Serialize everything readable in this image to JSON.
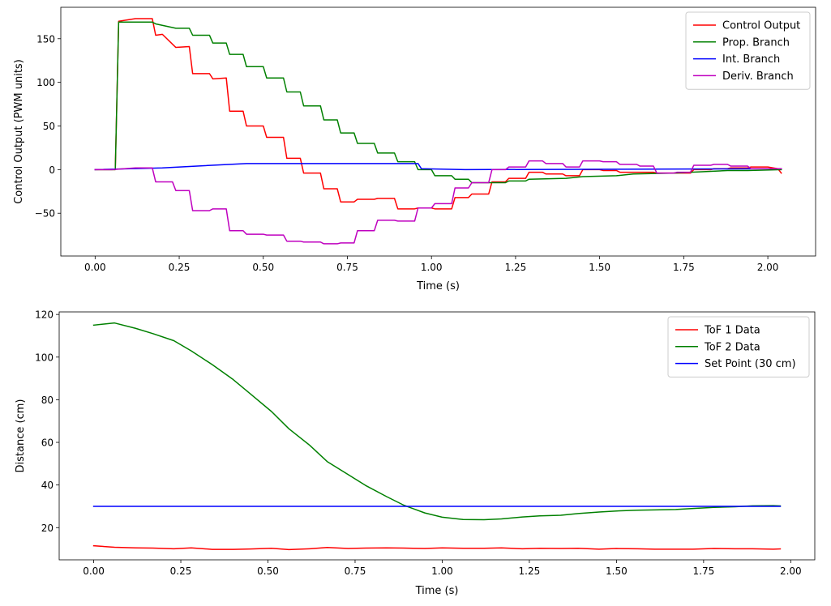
{
  "chart_data": [
    {
      "type": "line",
      "title": "",
      "xlabel": "Time (s)",
      "ylabel": "Control Output (PWM units)",
      "xlim": [
        -0.102,
        2.142
      ],
      "ylim": [
        -99,
        186
      ],
      "xticks": [
        0.0,
        0.25,
        0.5,
        0.75,
        1.0,
        1.25,
        1.5,
        1.75,
        2.0
      ],
      "xtick_labels": [
        "0.00",
        "0.25",
        "0.50",
        "0.75",
        "1.00",
        "1.25",
        "1.50",
        "1.75",
        "2.00"
      ],
      "yticks": [
        -50,
        0,
        50,
        100,
        150
      ],
      "ytick_labels": [
        "−50",
        "0",
        "50",
        "100",
        "150"
      ],
      "grid": false,
      "legend": "top-right",
      "series": [
        {
          "name": "Control Output",
          "color": "#ff0000",
          "x": [
            0.0,
            0.06,
            0.07,
            0.12,
            0.17,
            0.18,
            0.2,
            0.24,
            0.28,
            0.29,
            0.34,
            0.35,
            0.39,
            0.4,
            0.44,
            0.45,
            0.5,
            0.51,
            0.56,
            0.57,
            0.61,
            0.62,
            0.67,
            0.68,
            0.72,
            0.73,
            0.77,
            0.78,
            0.83,
            0.84,
            0.89,
            0.9,
            0.95,
            0.96,
            1.0,
            1.01,
            1.06,
            1.07,
            1.11,
            1.12,
            1.17,
            1.18,
            1.22,
            1.23,
            1.28,
            1.29,
            1.33,
            1.34,
            1.39,
            1.4,
            1.44,
            1.45,
            1.5,
            1.51,
            1.55,
            1.56,
            1.61,
            1.62,
            1.66,
            1.67,
            1.72,
            1.73,
            1.77,
            1.78,
            1.83,
            1.84,
            1.88,
            1.89,
            1.94,
            1.95,
            2.0,
            2.03,
            2.04
          ],
          "y": [
            0,
            0,
            170,
            173,
            173,
            154,
            155,
            140,
            141,
            110,
            110,
            104,
            105,
            67,
            67,
            50,
            50,
            37,
            37,
            13,
            13,
            -4,
            -4,
            -22,
            -22,
            -37,
            -37,
            -34,
            -34,
            -33,
            -33,
            -45,
            -45,
            -44,
            -44,
            -45,
            -45,
            -32,
            -32,
            -28,
            -28,
            -14,
            -14,
            -10,
            -10,
            -3,
            -3,
            -5,
            -5,
            -7,
            -7,
            0,
            0,
            -1,
            -1,
            -3,
            -3,
            -3,
            -3,
            -4,
            -4,
            -4,
            -4,
            0,
            0,
            1,
            1,
            2,
            2,
            3,
            3,
            1,
            -4
          ]
        },
        {
          "name": "Prop. Branch",
          "color": "#008000",
          "x": [
            0.0,
            0.06,
            0.07,
            0.12,
            0.17,
            0.18,
            0.24,
            0.28,
            0.29,
            0.34,
            0.35,
            0.39,
            0.4,
            0.44,
            0.45,
            0.5,
            0.51,
            0.56,
            0.57,
            0.61,
            0.62,
            0.67,
            0.68,
            0.72,
            0.73,
            0.77,
            0.78,
            0.83,
            0.84,
            0.89,
            0.9,
            0.95,
            0.96,
            1.0,
            1.01,
            1.06,
            1.07,
            1.11,
            1.12,
            1.22,
            1.23,
            1.28,
            1.29,
            1.4,
            1.45,
            1.55,
            1.6,
            1.72,
            1.77,
            1.83,
            1.88,
            1.94,
            2.04
          ],
          "y": [
            0,
            0,
            169,
            169,
            169,
            167,
            162,
            162,
            154,
            154,
            145,
            145,
            132,
            132,
            118,
            118,
            105,
            105,
            89,
            89,
            73,
            73,
            57,
            57,
            42,
            42,
            30,
            30,
            19,
            19,
            9,
            9,
            0,
            0,
            -7,
            -7,
            -11,
            -11,
            -15,
            -15,
            -13,
            -13,
            -11,
            -10,
            -8,
            -7,
            -5,
            -4,
            -3,
            -2,
            -1,
            -1,
            0
          ]
        },
        {
          "name": "Int. Branch",
          "color": "#0000ff",
          "x": [
            0.0,
            0.2,
            0.45,
            0.96,
            0.97,
            1.1,
            2.04
          ],
          "y": [
            0,
            2,
            7,
            7,
            1,
            0,
            1
          ]
        },
        {
          "name": "Deriv. Branch",
          "color": "#bf00bf",
          "x": [
            0.0,
            0.05,
            0.12,
            0.17,
            0.18,
            0.23,
            0.24,
            0.28,
            0.29,
            0.34,
            0.35,
            0.39,
            0.4,
            0.44,
            0.45,
            0.5,
            0.51,
            0.56,
            0.57,
            0.61,
            0.62,
            0.67,
            0.68,
            0.72,
            0.73,
            0.77,
            0.78,
            0.83,
            0.84,
            0.89,
            0.9,
            0.95,
            0.96,
            1.0,
            1.01,
            1.06,
            1.07,
            1.11,
            1.12,
            1.17,
            1.18,
            1.22,
            1.23,
            1.28,
            1.29,
            1.33,
            1.34,
            1.39,
            1.4,
            1.44,
            1.45,
            1.5,
            1.51,
            1.55,
            1.56,
            1.61,
            1.62,
            1.66,
            1.67,
            1.72,
            1.73,
            1.77,
            1.78,
            1.83,
            1.84,
            1.88,
            1.89,
            1.94,
            1.95,
            2.0,
            2.04
          ],
          "y": [
            0,
            0,
            2,
            2,
            -14,
            -14,
            -24,
            -24,
            -47,
            -47,
            -45,
            -45,
            -70,
            -70,
            -74,
            -74,
            -75,
            -75,
            -82,
            -82,
            -83,
            -83,
            -85,
            -85,
            -84,
            -84,
            -70,
            -70,
            -58,
            -58,
            -59,
            -59,
            -44,
            -44,
            -39,
            -39,
            -21,
            -21,
            -15,
            -15,
            0,
            0,
            3,
            3,
            10,
            10,
            7,
            7,
            3,
            3,
            10,
            10,
            9,
            9,
            6,
            6,
            4,
            4,
            -4,
            -4,
            -3,
            -3,
            5,
            5,
            6,
            6,
            4,
            4,
            1,
            1,
            1
          ]
        }
      ]
    },
    {
      "type": "line",
      "title": "",
      "xlabel": "Time (s)",
      "ylabel": "Distance (cm)",
      "xlim": [
        -0.099,
        2.069
      ],
      "ylim": [
        4.9,
        121.2
      ],
      "xticks": [
        0.0,
        0.25,
        0.5,
        0.75,
        1.0,
        1.25,
        1.5,
        1.75,
        2.0
      ],
      "xtick_labels": [
        "0.00",
        "0.25",
        "0.50",
        "0.75",
        "1.00",
        "1.25",
        "1.50",
        "1.75",
        "2.00"
      ],
      "yticks": [
        20,
        40,
        60,
        80,
        100,
        120
      ],
      "ytick_labels": [
        "20",
        "40",
        "60",
        "80",
        "100",
        "120"
      ],
      "grid": false,
      "legend": "top-right",
      "series": [
        {
          "name": "ToF 1 Data",
          "color": "#ff0000",
          "x": [
            0.0,
            0.06,
            0.12,
            0.17,
            0.23,
            0.28,
            0.34,
            0.4,
            0.45,
            0.51,
            0.56,
            0.62,
            0.67,
            0.73,
            0.78,
            0.84,
            0.89,
            0.95,
            1.0,
            1.06,
            1.12,
            1.17,
            1.23,
            1.28,
            1.34,
            1.39,
            1.45,
            1.5,
            1.56,
            1.61,
            1.67,
            1.72,
            1.78,
            1.84,
            1.89,
            1.95,
            1.97
          ],
          "y": [
            11.5,
            10.8,
            10.5,
            10.4,
            10.1,
            10.5,
            9.8,
            9.8,
            10.0,
            10.3,
            9.7,
            10.1,
            10.7,
            10.2,
            10.4,
            10.5,
            10.4,
            10.2,
            10.5,
            10.3,
            10.3,
            10.5,
            10.1,
            10.3,
            10.2,
            10.3,
            9.9,
            10.2,
            10.1,
            9.9,
            9.9,
            9.9,
            10.2,
            10.1,
            10.1,
            9.9,
            10.0
          ]
        },
        {
          "name": "ToF 2 Data",
          "color": "#008000",
          "x": [
            0.0,
            0.06,
            0.12,
            0.17,
            0.23,
            0.28,
            0.34,
            0.4,
            0.45,
            0.51,
            0.56,
            0.62,
            0.67,
            0.73,
            0.78,
            0.84,
            0.89,
            0.95,
            1.0,
            1.06,
            1.12,
            1.17,
            1.23,
            1.28,
            1.34,
            1.39,
            1.45,
            1.5,
            1.56,
            1.61,
            1.67,
            1.72,
            1.78,
            1.84,
            1.89,
            1.95,
            1.97
          ],
          "y": [
            115.0,
            116.0,
            113.5,
            111.0,
            107.7,
            102.9,
            96.5,
            89.5,
            82.7,
            74.5,
            66.4,
            58.6,
            51.0,
            44.9,
            39.8,
            34.6,
            30.5,
            26.9,
            24.9,
            23.8,
            23.7,
            24.1,
            25.0,
            25.5,
            25.8,
            26.6,
            27.3,
            27.8,
            28.2,
            28.3,
            28.5,
            29.0,
            29.5,
            29.8,
            30.2,
            30.3,
            30.2
          ]
        },
        {
          "name": "Set Point (30 cm)",
          "color": "#0000ff",
          "x": [
            0.0,
            1.97
          ],
          "y": [
            30,
            30
          ]
        }
      ]
    }
  ]
}
